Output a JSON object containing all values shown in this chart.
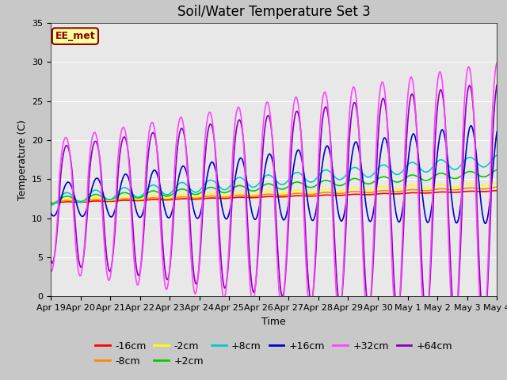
{
  "title": "Soil/Water Temperature Set 3",
  "xlabel": "Time",
  "ylabel": "Temperature (C)",
  "ylim": [
    0,
    35
  ],
  "yticks": [
    0,
    5,
    10,
    15,
    20,
    25,
    30,
    35
  ],
  "plot_bg_color": "#e8e8e8",
  "fig_bg_color": "#c8c8c8",
  "annotation_text": "EE_met",
  "annotation_bg": "#ffffa0",
  "annotation_border": "#8b0000",
  "series_colors": {
    "-16cm": "#ff0000",
    "-8cm": "#ff8800",
    "-2cm": "#ffff00",
    "+2cm": "#00cc00",
    "+8cm": "#00cccc",
    "+16cm": "#0000cc",
    "+32cm": "#ff44ff",
    "+64cm": "#8800bb"
  },
  "x_labels": [
    "Apr 19",
    "Apr 20",
    "Apr 21",
    "Apr 22",
    "Apr 23",
    "Apr 24",
    "Apr 25",
    "Apr 26",
    "Apr 27",
    "Apr 28",
    "Apr 29",
    "Apr 30",
    "May 1",
    "May 2",
    "May 3",
    "May 4"
  ],
  "n_days": 15.5,
  "title_fontsize": 12,
  "axis_label_fontsize": 9,
  "tick_fontsize": 8,
  "legend_fontsize": 9,
  "grid_color": "#ffffff",
  "linewidth": 1.2
}
